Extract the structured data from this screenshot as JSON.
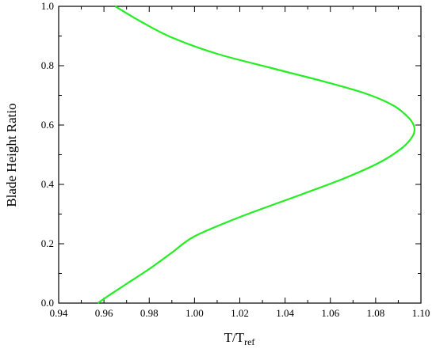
{
  "chart_data": {
    "type": "line",
    "title": "",
    "xlabel": "T/T",
    "xlabel_sub": "ref",
    "ylabel": "Blade Height Ratio",
    "xlim": [
      0.94,
      1.1
    ],
    "ylim": [
      0.0,
      1.0
    ],
    "x_ticks": [
      "0.94",
      "0.96",
      "0.98",
      "1.00",
      "1.02",
      "1.04",
      "1.06",
      "1.08",
      "1.10"
    ],
    "y_ticks": [
      "0.0",
      "0.2",
      "0.4",
      "0.6",
      "0.8",
      "1.0"
    ],
    "grid": false,
    "legend": "none",
    "series": [
      {
        "color": "#22ee22",
        "x": [
          0.9573,
          0.962,
          0.97,
          0.98,
          0.99,
          1.0,
          1.02,
          1.045,
          1.066,
          1.082,
          1.092,
          1.0965,
          1.097,
          1.0945,
          1.088,
          1.076,
          1.058,
          1.035,
          1.01,
          0.99,
          0.976,
          0.965
        ],
        "y": [
          0.0,
          0.025,
          0.065,
          0.115,
          0.17,
          0.225,
          0.29,
          0.36,
          0.42,
          0.475,
          0.525,
          0.565,
          0.595,
          0.625,
          0.665,
          0.705,
          0.745,
          0.79,
          0.84,
          0.895,
          0.95,
          1.0
        ]
      }
    ]
  }
}
